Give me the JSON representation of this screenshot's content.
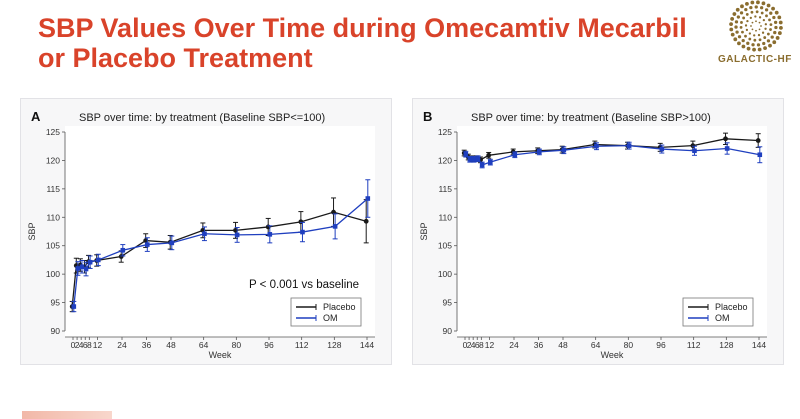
{
  "slide": {
    "title_line1": "SBP Values Over Time during Omecamtiv Mecarbil",
    "title_line2": "or Placebo Treatment"
  },
  "logo": {
    "text": "GALACTIC-HF",
    "icon": "galactic-hf-dots-logo",
    "color": "#8a6d2f"
  },
  "colors": {
    "title": "#d9432a",
    "placebo": "#1a1a1a",
    "om": "#1f3fbf"
  },
  "chart_data": [
    {
      "panel": "A",
      "type": "line",
      "title": "SBP over time: by treatment (Baseline SBP<=100)",
      "xlabel": "Week",
      "ylabel": "SBP",
      "ylim": [
        90,
        125
      ],
      "yticks": [
        90,
        95,
        100,
        105,
        110,
        115,
        120,
        125
      ],
      "xticks": [
        0,
        2,
        4,
        6,
        8,
        12,
        24,
        36,
        48,
        64,
        80,
        96,
        112,
        128,
        144
      ],
      "annotation": "P < 0.001 vs baseline",
      "legend_position": "bottom-right",
      "grid": false,
      "series": [
        {
          "name": "Placebo",
          "color": "#1a1a1a",
          "x": [
            0,
            2,
            4,
            6,
            8,
            12,
            24,
            36,
            48,
            64,
            80,
            96,
            112,
            128,
            144
          ],
          "y": [
            94.3,
            101.5,
            101.6,
            101.3,
            102.2,
            102.4,
            103.1,
            105.9,
            105.6,
            107.7,
            107.7,
            108.3,
            109.2,
            110.9,
            109.3
          ],
          "err": [
            0.9,
            1.3,
            1.1,
            1.1,
            1.1,
            1.0,
            1.0,
            1.2,
            1.2,
            1.3,
            1.4,
            1.5,
            1.8,
            2.5,
            3.8
          ]
        },
        {
          "name": "OM",
          "color": "#1f3fbf",
          "x": [
            0,
            2,
            4,
            6,
            8,
            12,
            24,
            36,
            48,
            64,
            80,
            96,
            112,
            128,
            144
          ],
          "y": [
            94.3,
            101.0,
            101.3,
            100.9,
            102.1,
            102.5,
            104.2,
            105.2,
            105.5,
            107.1,
            106.9,
            107.0,
            107.4,
            108.4,
            113.3
          ],
          "err": [
            0.9,
            1.2,
            1.1,
            1.2,
            1.1,
            1.0,
            1.0,
            1.2,
            1.2,
            1.2,
            1.3,
            1.5,
            1.7,
            2.2,
            3.3
          ]
        }
      ]
    },
    {
      "panel": "B",
      "type": "line",
      "title": "SBP over time: by treatment (Baseline SBP>100)",
      "xlabel": "Week",
      "ylabel": "SBP",
      "ylim": [
        90,
        125
      ],
      "yticks": [
        90,
        95,
        100,
        105,
        110,
        115,
        120,
        125
      ],
      "xticks": [
        0,
        2,
        4,
        6,
        8,
        12,
        24,
        36,
        48,
        64,
        80,
        96,
        112,
        128,
        144
      ],
      "annotation": "",
      "legend_position": "bottom-right",
      "grid": false,
      "series": [
        {
          "name": "Placebo",
          "color": "#1a1a1a",
          "x": [
            0,
            2,
            4,
            6,
            8,
            12,
            24,
            36,
            48,
            64,
            80,
            96,
            112,
            128,
            144
          ],
          "y": [
            121.3,
            120.6,
            120.3,
            120.3,
            120.1,
            120.9,
            121.5,
            121.7,
            121.9,
            122.8,
            122.6,
            122.3,
            122.6,
            123.8,
            123.5
          ],
          "err": [
            0.5,
            0.5,
            0.5,
            0.5,
            0.5,
            0.5,
            0.5,
            0.5,
            0.6,
            0.6,
            0.6,
            0.7,
            0.8,
            1.0,
            1.2
          ]
        },
        {
          "name": "OM",
          "color": "#1f3fbf",
          "x": [
            0,
            2,
            4,
            6,
            8,
            12,
            24,
            36,
            48,
            64,
            80,
            96,
            112,
            128,
            144
          ],
          "y": [
            121.1,
            120.2,
            120.2,
            120.3,
            119.2,
            119.7,
            121.0,
            121.5,
            121.8,
            122.5,
            122.6,
            122.0,
            121.7,
            122.1,
            121.0
          ],
          "err": [
            0.5,
            0.5,
            0.5,
            0.5,
            0.5,
            0.5,
            0.5,
            0.5,
            0.6,
            0.6,
            0.6,
            0.7,
            0.8,
            1.0,
            1.4
          ]
        }
      ]
    }
  ]
}
